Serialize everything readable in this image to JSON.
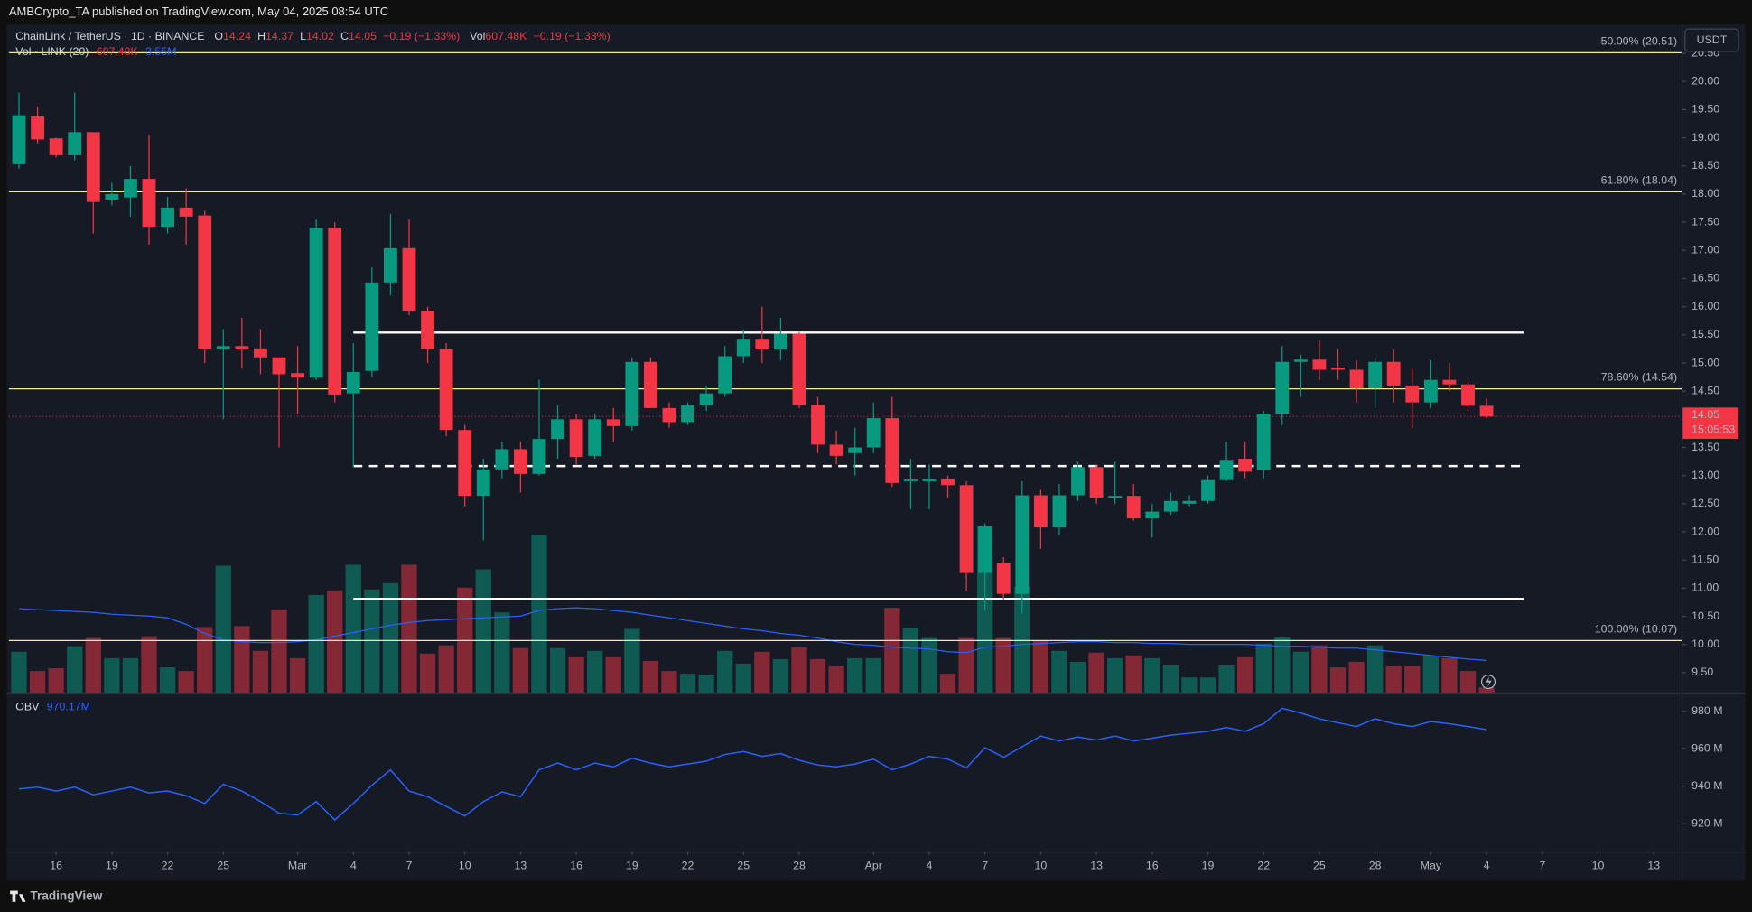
{
  "header": {
    "publisher": "AMBCrypto_TA published on TradingView.com, May 04, 2025 08:54 UTC"
  },
  "footer": {
    "brand": "TradingView"
  },
  "chart_data": [
    {
      "type": "candlestick",
      "symbol": "ChainLink / TetherUS · 1D · BINANCE",
      "legend": [
        {
          "key": "O",
          "value": "14.24"
        },
        {
          "key": "H",
          "value": "14.37"
        },
        {
          "key": "L",
          "value": "14.02"
        },
        {
          "key": "C",
          "value": "14.05"
        }
      ],
      "change": "−0.19 (−1.33%)",
      "legend_volume": {
        "key": "Vol",
        "value": "607.48K",
        "change": "−0.19 (−1.33%)"
      },
      "volume_legend": {
        "name": "Vol · LINK (20)",
        "value": "607.48K",
        "ma": "3.55M"
      },
      "currency": "USDT",
      "last_price": 14.05,
      "countdown": "15:05:53",
      "up_color": "#089981",
      "down_color": "#f23645",
      "volume_ma_color": "#2962ff",
      "grid": false,
      "x": [
        0,
        1,
        2,
        3,
        4,
        5,
        6,
        7,
        8,
        9,
        10,
        11,
        12,
        13,
        14,
        15,
        16,
        17,
        18,
        19,
        20,
        21,
        22,
        23,
        24,
        25,
        26,
        27,
        28,
        29,
        30,
        31,
        32,
        33,
        34,
        35,
        36,
        37,
        38,
        39,
        40,
        41,
        42,
        43,
        44,
        45,
        46,
        47,
        48,
        49,
        50,
        51,
        52,
        53,
        54,
        55,
        56,
        57,
        58,
        59,
        60,
        61,
        62,
        63,
        64,
        65,
        66,
        67,
        68,
        69,
        70,
        71,
        72,
        73,
        74,
        75,
        76,
        77,
        78,
        79
      ],
      "open": [
        18.53,
        19.38,
        18.99,
        18.69,
        19.1,
        17.9,
        17.94,
        18.27,
        17.42,
        17.76,
        17.62,
        15.25,
        15.3,
        15.26,
        15.1,
        14.82,
        14.74,
        17.4,
        14.46,
        14.86,
        16.43,
        17.04,
        15.93,
        15.25,
        13.81,
        12.64,
        13.11,
        13.47,
        13.03,
        13.65,
        14.0,
        13.35,
        14.0,
        13.88,
        15.02,
        14.2,
        13.95,
        14.25,
        14.46,
        15.12,
        15.43,
        15.24,
        15.52,
        14.26,
        13.55,
        13.4,
        13.5,
        14.02,
        12.9,
        12.9,
        12.94,
        12.83,
        11.27,
        11.45,
        10.9,
        12.65,
        12.08,
        12.65,
        13.15,
        12.6,
        12.64,
        12.24,
        12.36,
        12.5,
        12.55,
        12.92,
        13.3,
        13.1,
        14.1,
        15.02,
        15.06,
        14.92,
        14.88,
        14.55,
        15.02,
        14.6,
        14.3,
        14.7,
        14.62,
        14.24
      ],
      "high": [
        19.8,
        19.55,
        19.0,
        19.8,
        19.1,
        18.2,
        18.5,
        19.05,
        17.95,
        18.1,
        17.7,
        15.6,
        15.8,
        15.6,
        15.1,
        15.3,
        17.55,
        17.5,
        15.35,
        16.7,
        17.65,
        17.55,
        16.0,
        15.35,
        13.9,
        13.3,
        13.6,
        13.6,
        14.7,
        14.25,
        14.1,
        14.1,
        14.2,
        15.1,
        15.1,
        14.3,
        14.3,
        14.6,
        15.3,
        15.6,
        16.0,
        15.8,
        15.55,
        14.4,
        13.8,
        13.85,
        14.3,
        14.4,
        13.3,
        13.2,
        13.0,
        12.9,
        12.15,
        11.55,
        12.9,
        12.75,
        12.85,
        13.25,
        13.2,
        13.25,
        12.85,
        12.5,
        12.7,
        12.65,
        13.0,
        13.6,
        13.6,
        14.15,
        15.3,
        15.15,
        15.4,
        15.25,
        15.05,
        15.1,
        15.25,
        14.9,
        15.05,
        15.0,
        14.68,
        14.37
      ],
      "low": [
        18.45,
        18.9,
        18.65,
        18.6,
        17.3,
        17.8,
        17.6,
        17.1,
        17.3,
        17.1,
        15.0,
        14.0,
        14.9,
        14.8,
        13.5,
        14.1,
        14.7,
        14.3,
        13.15,
        14.75,
        16.2,
        15.85,
        15.0,
        13.7,
        12.45,
        11.85,
        12.95,
        12.7,
        13.0,
        13.3,
        13.2,
        13.3,
        13.6,
        13.8,
        14.2,
        13.85,
        13.9,
        14.15,
        14.4,
        15.0,
        15.0,
        15.05,
        14.2,
        13.4,
        13.2,
        13.0,
        13.4,
        12.8,
        12.4,
        12.4,
        12.6,
        10.95,
        10.6,
        10.8,
        10.55,
        11.7,
        11.95,
        12.55,
        12.5,
        12.5,
        12.2,
        11.9,
        12.3,
        12.45,
        12.5,
        12.9,
        12.95,
        12.95,
        13.9,
        14.4,
        14.7,
        14.7,
        14.3,
        14.2,
        14.3,
        13.85,
        14.2,
        14.5,
        14.15,
        14.02
      ],
      "close": [
        19.4,
        18.97,
        18.69,
        19.1,
        17.86,
        18.0,
        18.27,
        17.42,
        17.76,
        17.6,
        15.25,
        15.3,
        15.24,
        15.1,
        14.8,
        14.74,
        17.4,
        14.44,
        14.84,
        16.43,
        17.04,
        15.93,
        15.25,
        13.81,
        12.64,
        13.11,
        13.47,
        13.03,
        13.65,
        14.0,
        13.33,
        14.0,
        13.88,
        15.02,
        14.2,
        13.95,
        14.25,
        14.46,
        15.12,
        15.43,
        15.24,
        15.52,
        14.26,
        13.55,
        13.35,
        13.5,
        14.02,
        12.87,
        12.93,
        12.94,
        12.83,
        11.27,
        12.1,
        10.9,
        12.65,
        12.08,
        12.65,
        13.15,
        12.6,
        12.64,
        12.24,
        12.36,
        12.55,
        12.55,
        12.92,
        13.28,
        13.07,
        14.1,
        15.02,
        15.06,
        14.88,
        14.88,
        14.55,
        15.02,
        14.6,
        14.3,
        14.7,
        14.62,
        14.24,
        14.05
      ],
      "volume": [
        4.5,
        2.4,
        2.7,
        5.1,
        6.0,
        3.8,
        3.8,
        6.2,
        2.8,
        2.4,
        7.2,
        13.9,
        7.3,
        4.6,
        9.1,
        3.8,
        10.7,
        11.2,
        14.0,
        11.3,
        12.0,
        14.0,
        4.3,
        5.2,
        11.5,
        13.5,
        8.8,
        4.9,
        17.3,
        4.9,
        3.9,
        4.6,
        3.9,
        7.0,
        3.5,
        2.4,
        2.1,
        2.0,
        4.6,
        3.2,
        4.5,
        3.7,
        5.0,
        3.7,
        2.9,
        3.8,
        3.8,
        9.3,
        7.1,
        6.0,
        2.1,
        6.0,
        18.2,
        6.0,
        11.6,
        5.7,
        4.6,
        3.4,
        4.4,
        3.8,
        4.1,
        3.8,
        3.0,
        1.7,
        1.7,
        3.0,
        3.9,
        5.4,
        6.1,
        4.5,
        5.2,
        2.8,
        3.4,
        5.2,
        2.9,
        2.9,
        4.0,
        3.8,
        2.4,
        0.61
      ],
      "volume_ma": [
        9.2,
        9.1,
        9.0,
        8.9,
        8.8,
        8.6,
        8.5,
        8.4,
        8.2,
        7.5,
        6.5,
        5.8,
        5.6,
        5.5,
        5.5,
        5.6,
        5.8,
        6.2,
        6.6,
        7.0,
        7.4,
        7.7,
        7.9,
        8.0,
        8.1,
        8.2,
        8.3,
        8.4,
        9.0,
        9.2,
        9.3,
        9.2,
        9.0,
        8.8,
        8.5,
        8.2,
        7.9,
        7.6,
        7.3,
        7.0,
        6.8,
        6.5,
        6.3,
        6.0,
        5.6,
        5.3,
        5.2,
        5.0,
        4.9,
        4.8,
        4.5,
        4.4,
        5.0,
        5.1,
        5.3,
        5.4,
        5.5,
        5.6,
        5.6,
        5.5,
        5.5,
        5.4,
        5.4,
        5.3,
        5.3,
        5.3,
        5.3,
        5.2,
        5.1,
        5.1,
        5.0,
        4.9,
        4.9,
        4.7,
        4.5,
        4.3,
        4.1,
        3.9,
        3.7,
        3.55
      ],
      "vlim": [
        0,
        73
      ],
      "xlim": [
        -0.54,
        89.5
      ],
      "xticks": [
        {
          "value": 2,
          "label": "16"
        },
        {
          "value": 5,
          "label": "19"
        },
        {
          "value": 8,
          "label": "22"
        },
        {
          "value": 11,
          "label": "25"
        },
        {
          "value": 15,
          "label": "Mar"
        },
        {
          "value": 18,
          "label": "4"
        },
        {
          "value": 21,
          "label": "7"
        },
        {
          "value": 24,
          "label": "10"
        },
        {
          "value": 27,
          "label": "13"
        },
        {
          "value": 30,
          "label": "16"
        },
        {
          "value": 33,
          "label": "19"
        },
        {
          "value": 36,
          "label": "22"
        },
        {
          "value": 39,
          "label": "25"
        },
        {
          "value": 42,
          "label": "28"
        },
        {
          "value": 46,
          "label": "Apr"
        },
        {
          "value": 49,
          "label": "4"
        },
        {
          "value": 52,
          "label": "7"
        },
        {
          "value": 55,
          "label": "10"
        },
        {
          "value": 58,
          "label": "13"
        },
        {
          "value": 61,
          "label": "16"
        },
        {
          "value": 64,
          "label": "19"
        },
        {
          "value": 67,
          "label": "22"
        },
        {
          "value": 70,
          "label": "25"
        },
        {
          "value": 73,
          "label": "28"
        },
        {
          "value": 76,
          "label": "May"
        },
        {
          "value": 79,
          "label": "4"
        },
        {
          "value": 82,
          "label": "7"
        },
        {
          "value": 85,
          "label": "10"
        },
        {
          "value": 88,
          "label": "13"
        }
      ],
      "ylim": [
        9.14,
        21.01
      ],
      "yticks": [
        {
          "value": 9.5,
          "label": "9.50"
        },
        {
          "value": 10,
          "label": "10.00"
        },
        {
          "value": 10.5,
          "label": "10.50"
        },
        {
          "value": 11,
          "label": "11.00"
        },
        {
          "value": 11.5,
          "label": "11.50"
        },
        {
          "value": 12,
          "label": "12.00"
        },
        {
          "value": 12.5,
          "label": "12.50"
        },
        {
          "value": 13,
          "label": "13.00"
        },
        {
          "value": 13.5,
          "label": "13.50"
        },
        {
          "value": 14,
          "label": "14.00"
        },
        {
          "value": 14.5,
          "label": "14.50"
        },
        {
          "value": 15,
          "label": "15.00"
        },
        {
          "value": 15.5,
          "label": "15.50"
        },
        {
          "value": 16,
          "label": "16.00"
        },
        {
          "value": 16.5,
          "label": "16.50"
        },
        {
          "value": 17,
          "label": "17.00"
        },
        {
          "value": 17.5,
          "label": "17.50"
        },
        {
          "value": 18,
          "label": "18.00"
        },
        {
          "value": 18.5,
          "label": "18.50"
        },
        {
          "value": 19,
          "label": "19.00"
        },
        {
          "value": 19.5,
          "label": "19.50"
        },
        {
          "value": 20,
          "label": "20.00"
        },
        {
          "value": 20.5,
          "label": "20.50"
        }
      ],
      "fib_color": "#f7e98e",
      "fib_levels": [
        {
          "value": 20.51,
          "label": "50.00% (20.51)"
        },
        {
          "value": 18.04,
          "label": "61.80% (18.04)"
        },
        {
          "value": 14.54,
          "label": "78.60% (14.54)"
        },
        {
          "value": 10.07,
          "label": "100.00% (10.07)"
        }
      ],
      "levels": [
        {
          "y": 15.54,
          "x": [
            18,
            81
          ],
          "style": "solid"
        },
        {
          "y": 13.17,
          "x": [
            18,
            81
          ],
          "style": "dashed"
        },
        {
          "y": 10.81,
          "x": [
            18,
            81
          ],
          "style": "solid"
        }
      ]
    },
    {
      "type": "line",
      "legend_value": "970.17M",
      "series": [
        {
          "name": "OBV",
          "color": "#2962ff",
          "values": [
            938.5,
            939.5,
            937.4,
            939.5,
            935.4,
            937.4,
            939.5,
            936.4,
            937.4,
            934.9,
            930.8,
            941,
            937.4,
            931.8,
            925.6,
            924.6,
            931.8,
            922,
            930.8,
            940.5,
            948.7,
            937.4,
            934.4,
            929.2,
            924.1,
            931.8,
            936.9,
            934.4,
            948.7,
            952.3,
            948.7,
            952.3,
            950.3,
            954.9,
            952.3,
            950.3,
            951.8,
            953.3,
            956.9,
            958.5,
            955.9,
            957.4,
            953.8,
            951.3,
            950.3,
            951.8,
            954.4,
            948.7,
            951.8,
            955.9,
            954.4,
            949.7,
            960.5,
            955.4,
            961,
            966.7,
            964.1,
            966.2,
            964.6,
            966.7,
            964.1,
            965.6,
            967.2,
            968.2,
            969.2,
            971.3,
            969.2,
            973.3,
            981.5,
            979,
            975.9,
            973.8,
            971.8,
            975.9,
            973.3,
            971.8,
            974.4,
            973.3,
            971.8,
            970.17
          ]
        }
      ],
      "ylim": [
        905.1,
        989.7
      ],
      "yticks": [
        {
          "value": 920,
          "label": "920 M"
        },
        {
          "value": 940,
          "label": "940 M"
        },
        {
          "value": 960,
          "label": "960 M"
        },
        {
          "value": 980,
          "label": "980 M"
        }
      ]
    }
  ]
}
